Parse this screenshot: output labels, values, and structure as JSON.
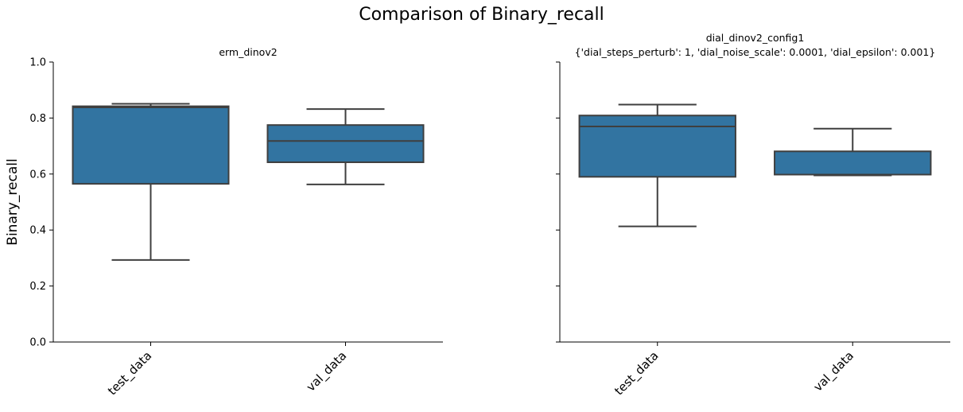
{
  "suptitle": "Comparison of Binary_recall",
  "ylabel": "Binary_recall",
  "colors": {
    "box_fill": "#3274a1",
    "box_line": "#3f3f3f",
    "axis": "#000000"
  },
  "chart_data": [
    {
      "type": "box",
      "title": "erm_dinov2",
      "title_line2": "",
      "xlabel": "",
      "ylabel": "Binary_recall",
      "ylim": [
        0,
        1.0
      ],
      "yticks": [
        "0.0",
        "0.2",
        "0.4",
        "0.6",
        "0.8",
        "1.0"
      ],
      "categories": [
        "test_data",
        "val_data"
      ],
      "boxes": [
        {
          "category": "test_data",
          "whisker_low": 0.293,
          "q1": 0.565,
          "median": 0.838,
          "q3": 0.842,
          "whisker_high": 0.851
        },
        {
          "category": "val_data",
          "whisker_low": 0.563,
          "q1": 0.642,
          "median": 0.718,
          "q3": 0.775,
          "whisker_high": 0.832
        }
      ]
    },
    {
      "type": "box",
      "title": "dial_dinov2_config1",
      "title_line2": "{'dial_steps_perturb': 1, 'dial_noise_scale': 0.0001, 'dial_epsilon': 0.001}",
      "xlabel": "",
      "ylabel": "",
      "ylim": [
        0,
        1.0
      ],
      "yticks": [
        "",
        "",
        "",
        "",
        "",
        ""
      ],
      "categories": [
        "test_data",
        "val_data"
      ],
      "boxes": [
        {
          "category": "test_data",
          "whisker_low": 0.413,
          "q1": 0.59,
          "median": 0.77,
          "q3": 0.809,
          "whisker_high": 0.848
        },
        {
          "category": "val_data",
          "whisker_low": 0.595,
          "q1": 0.598,
          "median": 0.598,
          "q3": 0.681,
          "whisker_high": 0.762
        }
      ]
    }
  ]
}
